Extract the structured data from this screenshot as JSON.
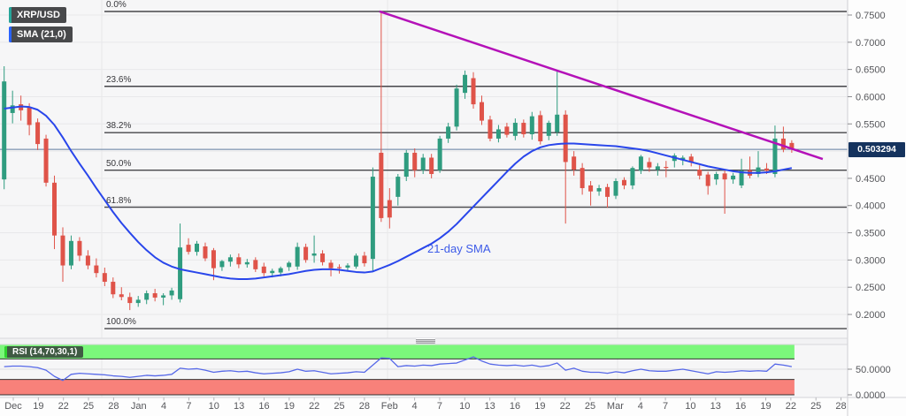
{
  "header": {
    "symbol_label": "XRP/USD",
    "sma_label": "SMA (21,0)"
  },
  "rsi_panel": {
    "label": "RSI (14,70,30,1)",
    "axis_ticks": [
      {
        "label": "50.0000",
        "value": 50
      },
      {
        "label": "0.0000",
        "value": 0
      }
    ],
    "overbought_band": [
      70,
      100
    ],
    "oversold_band": [
      0,
      30
    ]
  },
  "price_axis": {
    "ticks": [
      {
        "label": "0.7500",
        "value": 0.75
      },
      {
        "label": "0.7000",
        "value": 0.7
      },
      {
        "label": "0.6500",
        "value": 0.65
      },
      {
        "label": "0.6000",
        "value": 0.6
      },
      {
        "label": "0.5500",
        "value": 0.55
      },
      {
        "label": "0.4500",
        "value": 0.45
      },
      {
        "label": "0.4000",
        "value": 0.4
      },
      {
        "label": "0.3500",
        "value": 0.35
      },
      {
        "label": "0.3000",
        "value": 0.3
      },
      {
        "label": "0.2500",
        "value": 0.25
      },
      {
        "label": "0.2000",
        "value": 0.2
      }
    ],
    "current_price_label": "0.503294"
  },
  "x_axis": {
    "labels": [
      "Dec",
      "19",
      "22",
      "25",
      "28",
      "Jan",
      "4",
      "7",
      "10",
      "13",
      "16",
      "19",
      "22",
      "25",
      "28",
      "Feb",
      "4",
      "7",
      "10",
      "13",
      "16",
      "19",
      "22",
      "25",
      "Mar",
      "4",
      "7",
      "10",
      "13",
      "16",
      "19",
      "22",
      "25",
      "28"
    ]
  },
  "annotations": {
    "sma_text": "21-day SMA"
  },
  "colors": {
    "up": "#2f9c7f",
    "down": "#df5349",
    "sma": "#2946eb",
    "rsi": "#5668e8",
    "trend": "#b411b8",
    "price_line": "#5f7d9e",
    "fib_line": "#46464a",
    "grid": "#e8e8ea",
    "pane_bg": "#f6f6f7",
    "axis_bg": "#fdfdfd",
    "overbought": "#7bf77b",
    "oversold": "#f8817a",
    "band_edge": "#333333",
    "badge_bg": "#48494b",
    "symbol_accent": "#26a69a",
    "sma_accent": "#2962ff",
    "rsi_badge_bg": "#3f5a43",
    "rsi_badge_accent": "#2fd42f",
    "price_badge_bg": "#15335e",
    "axis_text": "#56575b"
  },
  "chart_data": {
    "type": "candlestick",
    "symbol": "XRP/USD",
    "interval": "1D",
    "ylim": [
      0.156,
      0.778
    ],
    "current_price": 0.503294,
    "dates": [
      "Dec 16",
      "Dec 17",
      "Dec 18",
      "Dec 19",
      "Dec 20",
      "Dec 21",
      "Dec 22",
      "Dec 23",
      "Dec 24",
      "Dec 25",
      "Dec 26",
      "Dec 27",
      "Dec 28",
      "Dec 29",
      "Dec 30",
      "Dec 31",
      "Jan 1",
      "Jan 2",
      "Jan 3",
      "Jan 4",
      "Jan 5",
      "Jan 6",
      "Jan 7",
      "Jan 8",
      "Jan 9",
      "Jan 10",
      "Jan 11",
      "Jan 12",
      "Jan 13",
      "Jan 14",
      "Jan 15",
      "Jan 16",
      "Jan 17",
      "Jan 18",
      "Jan 19",
      "Jan 20",
      "Jan 21",
      "Jan 22",
      "Jan 23",
      "Jan 24",
      "Jan 25",
      "Jan 26",
      "Jan 27",
      "Jan 28",
      "Jan 29",
      "Jan 30",
      "Jan 31",
      "Feb 1",
      "Feb 2",
      "Feb 3",
      "Feb 4",
      "Feb 5",
      "Feb 6",
      "Feb 7",
      "Feb 8",
      "Feb 9",
      "Feb 10",
      "Feb 11",
      "Feb 12",
      "Feb 13",
      "Feb 14",
      "Feb 15",
      "Feb 16",
      "Feb 17",
      "Feb 18",
      "Feb 19",
      "Feb 20",
      "Feb 21",
      "Feb 22",
      "Feb 23",
      "Feb 24",
      "Feb 25",
      "Feb 26",
      "Feb 27",
      "Feb 28",
      "Mar 1",
      "Mar 2",
      "Mar 3",
      "Mar 4",
      "Mar 5",
      "Mar 6",
      "Mar 7",
      "Mar 8",
      "Mar 9",
      "Mar 10",
      "Mar 11",
      "Mar 12",
      "Mar 13",
      "Mar 14",
      "Mar 15",
      "Mar 16",
      "Mar 17",
      "Mar 18",
      "Mar 19",
      "Mar 20"
    ],
    "ohlc": [
      [
        0.448,
        0.656,
        0.43,
        0.628
      ],
      [
        0.57,
        0.611,
        0.551,
        0.584
      ],
      [
        0.586,
        0.602,
        0.556,
        0.575
      ],
      [
        0.581,
        0.588,
        0.529,
        0.548
      ],
      [
        0.553,
        0.56,
        0.502,
        0.513
      ],
      [
        0.523,
        0.53,
        0.435,
        0.442
      ],
      [
        0.442,
        0.455,
        0.32,
        0.345
      ],
      [
        0.345,
        0.36,
        0.26,
        0.29
      ],
      [
        0.29,
        0.345,
        0.283,
        0.335
      ],
      [
        0.335,
        0.342,
        0.298,
        0.308
      ],
      [
        0.308,
        0.318,
        0.283,
        0.29
      ],
      [
        0.29,
        0.303,
        0.268,
        0.276
      ],
      [
        0.276,
        0.286,
        0.252,
        0.26
      ],
      [
        0.26,
        0.268,
        0.23,
        0.237
      ],
      [
        0.237,
        0.25,
        0.226,
        0.232
      ],
      [
        0.232,
        0.24,
        0.208,
        0.221
      ],
      [
        0.221,
        0.234,
        0.214,
        0.227
      ],
      [
        0.227,
        0.244,
        0.219,
        0.239
      ],
      [
        0.239,
        0.247,
        0.224,
        0.231
      ],
      [
        0.231,
        0.239,
        0.217,
        0.235
      ],
      [
        0.235,
        0.249,
        0.227,
        0.244
      ],
      [
        0.228,
        0.367,
        0.222,
        0.323
      ],
      [
        0.328,
        0.34,
        0.31,
        0.315
      ],
      [
        0.315,
        0.335,
        0.308,
        0.33
      ],
      [
        0.325,
        0.332,
        0.298,
        0.303
      ],
      [
        0.318,
        0.322,
        0.263,
        0.285
      ],
      [
        0.287,
        0.3,
        0.28,
        0.298
      ],
      [
        0.297,
        0.31,
        0.288,
        0.305
      ],
      [
        0.305,
        0.312,
        0.285,
        0.292
      ],
      [
        0.292,
        0.302,
        0.286,
        0.296
      ],
      [
        0.3,
        0.305,
        0.278,
        0.283
      ],
      [
        0.288,
        0.295,
        0.27,
        0.276
      ],
      [
        0.276,
        0.284,
        0.268,
        0.28
      ],
      [
        0.277,
        0.288,
        0.27,
        0.285
      ],
      [
        0.287,
        0.298,
        0.28,
        0.295
      ],
      [
        0.288,
        0.332,
        0.282,
        0.324
      ],
      [
        0.324,
        0.33,
        0.295,
        0.3
      ],
      [
        0.308,
        0.345,
        0.295,
        0.312
      ],
      [
        0.312,
        0.318,
        0.29,
        0.296
      ],
      [
        0.295,
        0.3,
        0.27,
        0.285
      ],
      [
        0.287,
        0.292,
        0.275,
        0.286
      ],
      [
        0.286,
        0.294,
        0.28,
        0.29
      ],
      [
        0.288,
        0.312,
        0.284,
        0.308
      ],
      [
        0.308,
        0.315,
        0.288,
        0.294
      ],
      [
        0.302,
        0.47,
        0.28,
        0.453
      ],
      [
        0.497,
        0.757,
        0.37,
        0.377
      ],
      [
        0.41,
        0.432,
        0.358,
        0.378
      ],
      [
        0.416,
        0.458,
        0.4,
        0.453
      ],
      [
        0.453,
        0.502,
        0.445,
        0.497
      ],
      [
        0.497,
        0.505,
        0.452,
        0.465
      ],
      [
        0.465,
        0.495,
        0.458,
        0.488
      ],
      [
        0.488,
        0.495,
        0.45,
        0.458
      ],
      [
        0.465,
        0.528,
        0.46,
        0.523
      ],
      [
        0.523,
        0.552,
        0.515,
        0.545
      ],
      [
        0.545,
        0.622,
        0.538,
        0.615
      ],
      [
        0.607,
        0.648,
        0.596,
        0.64
      ],
      [
        0.634,
        0.645,
        0.578,
        0.586
      ],
      [
        0.59,
        0.602,
        0.548,
        0.556
      ],
      [
        0.558,
        0.565,
        0.518,
        0.523
      ],
      [
        0.523,
        0.548,
        0.516,
        0.54
      ],
      [
        0.545,
        0.552,
        0.525,
        0.53
      ],
      [
        0.528,
        0.56,
        0.52,
        0.552
      ],
      [
        0.552,
        0.558,
        0.525,
        0.531
      ],
      [
        0.531,
        0.572,
        0.521,
        0.564
      ],
      [
        0.566,
        0.574,
        0.512,
        0.518
      ],
      [
        0.528,
        0.556,
        0.52,
        0.552
      ],
      [
        0.535,
        0.648,
        0.528,
        0.567
      ],
      [
        0.567,
        0.575,
        0.367,
        0.48
      ],
      [
        0.49,
        0.5,
        0.455,
        0.466
      ],
      [
        0.469,
        0.478,
        0.42,
        0.432
      ],
      [
        0.437,
        0.445,
        0.4,
        0.426
      ],
      [
        0.426,
        0.438,
        0.418,
        0.432
      ],
      [
        0.434,
        0.44,
        0.396,
        0.416
      ],
      [
        0.418,
        0.45,
        0.412,
        0.445
      ],
      [
        0.447,
        0.452,
        0.43,
        0.437
      ],
      [
        0.437,
        0.472,
        0.43,
        0.469
      ],
      [
        0.464,
        0.493,
        0.458,
        0.49
      ],
      [
        0.48,
        0.488,
        0.462,
        0.47
      ],
      [
        0.466,
        0.478,
        0.455,
        0.472
      ],
      [
        0.471,
        0.482,
        0.452,
        0.47
      ],
      [
        0.482,
        0.496,
        0.47,
        0.492
      ],
      [
        0.483,
        0.492,
        0.474,
        0.488
      ],
      [
        0.49,
        0.495,
        0.472,
        0.48
      ],
      [
        0.466,
        0.474,
        0.448,
        0.455
      ],
      [
        0.457,
        0.462,
        0.42,
        0.436
      ],
      [
        0.448,
        0.462,
        0.438,
        0.458
      ],
      [
        0.459,
        0.465,
        0.385,
        0.448
      ],
      [
        0.448,
        0.46,
        0.44,
        0.455
      ],
      [
        0.437,
        0.486,
        0.432,
        0.464
      ],
      [
        0.465,
        0.49,
        0.45,
        0.455
      ],
      [
        0.458,
        0.5,
        0.452,
        0.47
      ],
      [
        0.468,
        0.478,
        0.458,
        0.464
      ],
      [
        0.458,
        0.547,
        0.452,
        0.523
      ],
      [
        0.523,
        0.545,
        0.498,
        0.503
      ],
      [
        0.515,
        0.52,
        0.497,
        0.5033
      ]
    ],
    "sma21": [
      0.578,
      0.58,
      0.582,
      0.581,
      0.576,
      0.565,
      0.548,
      0.525,
      0.5,
      0.477,
      0.455,
      0.432,
      0.41,
      0.388,
      0.368,
      0.35,
      0.333,
      0.318,
      0.305,
      0.295,
      0.288,
      0.283,
      0.28,
      0.277,
      0.274,
      0.271,
      0.268,
      0.266,
      0.265,
      0.265,
      0.266,
      0.268,
      0.27,
      0.272,
      0.274,
      0.277,
      0.28,
      0.282,
      0.283,
      0.283,
      0.282,
      0.28,
      0.278,
      0.277,
      0.279,
      0.285,
      0.291,
      0.298,
      0.306,
      0.314,
      0.322,
      0.33,
      0.34,
      0.352,
      0.366,
      0.382,
      0.398,
      0.414,
      0.43,
      0.446,
      0.462,
      0.477,
      0.49,
      0.5,
      0.507,
      0.511,
      0.513,
      0.514,
      0.514,
      0.513,
      0.512,
      0.511,
      0.51,
      0.509,
      0.507,
      0.505,
      0.503,
      0.5,
      0.496,
      0.492,
      0.488,
      0.484,
      0.48,
      0.476,
      0.472,
      0.469,
      0.466,
      0.463,
      0.461,
      0.46,
      0.46,
      0.461,
      0.463,
      0.466,
      0.469
    ],
    "rsi14": [
      55,
      56,
      56,
      55,
      53,
      48,
      36,
      28,
      40,
      42,
      41,
      40,
      39,
      37,
      36,
      34,
      36,
      38,
      37,
      38,
      40,
      52,
      50,
      51,
      48,
      44,
      46,
      47,
      45,
      46,
      43,
      41,
      42,
      43,
      45,
      50,
      46,
      47,
      44,
      41,
      42,
      43,
      45,
      44,
      58,
      72,
      71,
      55,
      57,
      56,
      58,
      57,
      60,
      61,
      62,
      68,
      74,
      66,
      60,
      58,
      57,
      58,
      56,
      58,
      55,
      57,
      62,
      48,
      52,
      46,
      44,
      44,
      42,
      45,
      43,
      47,
      50,
      47,
      46,
      46,
      48,
      50,
      47,
      44,
      41,
      45,
      44,
      45,
      47,
      46,
      47,
      46,
      60,
      58,
      55
    ],
    "fib_retracement": {
      "high": 0.7565,
      "low": 0.174,
      "levels": [
        {
          "label": "0.0%",
          "price": 0.7565
        },
        {
          "label": "23.6%",
          "price": 0.619
        },
        {
          "label": "38.2%",
          "price": 0.534
        },
        {
          "label": "50.0%",
          "price": 0.465
        },
        {
          "label": "61.8%",
          "price": 0.397
        },
        {
          "label": "100.0%",
          "price": 0.174
        }
      ]
    },
    "trendline": {
      "start_index": 44.8,
      "start_price": 0.7565,
      "end_index": 97.7,
      "end_price": 0.4855
    }
  }
}
